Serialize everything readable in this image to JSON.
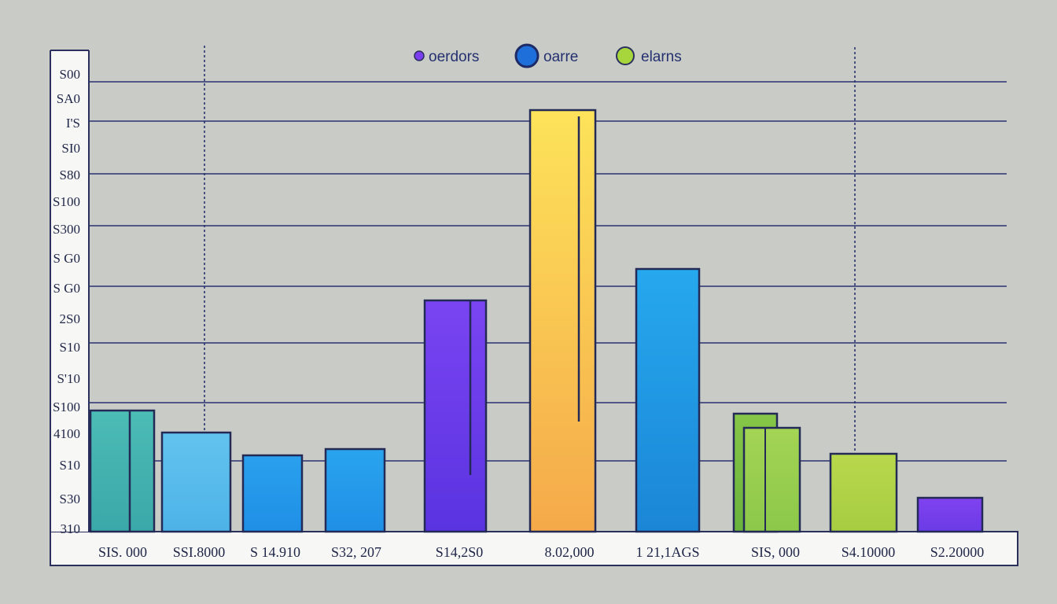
{
  "chart_data": {
    "type": "bar",
    "title": "",
    "xlabel": "",
    "ylabel": "",
    "ylim": [
      0,
      580
    ],
    "y_ticks": [
      "310",
      "S30",
      "S10",
      "4100",
      "S100",
      "S'10",
      "S10",
      "2S0",
      "S G0",
      "S G0",
      "S300",
      "S100",
      "S80",
      "SI0",
      "I'S",
      "SA0",
      "S00"
    ],
    "categories": [
      "SIS. 000",
      "SSI.8000",
      "S 14.910",
      "S32, 207",
      "S14,2S0",
      "8.02,000",
      "1 21,1AGS",
      "SIS, 000",
      "S4.10000",
      "S2.20000"
    ],
    "legend": [
      {
        "label": "oerdors",
        "color": "#7b3ff0"
      },
      {
        "label": "oarre",
        "color": "#1e6fd9"
      },
      {
        "label": "elarns",
        "color": "#a6d63c"
      }
    ],
    "values": [
      154,
      126,
      97,
      105,
      294,
      536,
      334,
      150,
      99,
      43
    ],
    "secondary_values": [
      null,
      null,
      null,
      null,
      null,
      null,
      null,
      132,
      null,
      null
    ],
    "colors": [
      [
        "#3aa8a8",
        "#4cbcb6"
      ],
      [
        "#4db3e8",
        "#62c3ee"
      ],
      [
        "#1f8fe6",
        "#2aa0ee"
      ],
      [
        "#1f8fe6",
        "#2aa4ee"
      ],
      [
        "#5a33e0",
        "#7a44f2"
      ],
      [
        "#f5a94a",
        "#fde35a"
      ],
      [
        "#1b86d6",
        "#26a8ee"
      ],
      [
        "#69b23c",
        "#86c648"
      ],
      [
        "#a6cc42",
        "#b9d84c"
      ],
      [
        "#6a3be6",
        "#8142f0"
      ]
    ],
    "secondary_color": [
      "#8cc84a",
      "#a4d454"
    ]
  }
}
